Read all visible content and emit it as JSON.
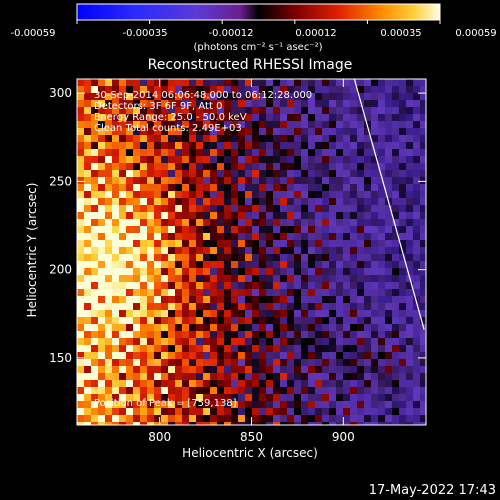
{
  "colorbar": {
    "ticks": [
      "-0.00059",
      "-0.00035",
      "-0.00012",
      "0.00012",
      "0.00035",
      "0.00059"
    ],
    "units": "(photons cm⁻² s⁻¹ asec⁻²)"
  },
  "annotations": {
    "time": "30-Sep-2014 06:06:48.000 to 06:12:28.000",
    "detectors": "Detectors: 3F 6F 9F, Att 0",
    "energy": "Energy Range: 25.0 - 50.0 keV",
    "clean": "Clean     Total counts: 2.49E+03",
    "peak": "Position of Peak = [759,138]"
  },
  "footer": {
    "timestamp": "17-May-2022 17:43"
  },
  "chart_data": {
    "type": "heatmap",
    "title": "Reconstructed RHESSI Image",
    "xlabel": "Heliocentric X (arcsec)",
    "ylabel": "Heliocentric Y (arcsec)",
    "xlim": [
      755,
      945
    ],
    "ylim": [
      112,
      308
    ],
    "xticks": [
      800,
      850,
      900
    ],
    "yticks": [
      150,
      200,
      250,
      300
    ],
    "colorbar_range": [
      -0.00059,
      0.00059
    ],
    "peak_position": [
      759,
      138
    ],
    "limb_line": [
      [
        906,
        308
      ],
      [
        944,
        166
      ]
    ]
  }
}
